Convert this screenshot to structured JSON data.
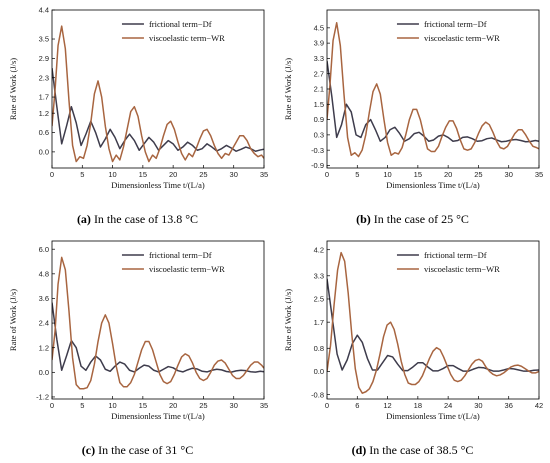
{
  "colors": {
    "frictional": "#3e3c4c",
    "viscoelastic": "#a86540"
  },
  "panels": [
    {
      "caption": {
        "label": "(a)",
        "text": "In the case of 13.8 °C"
      }
    },
    {
      "caption": {
        "label": "(b)",
        "text": "In the case of 25 °C"
      }
    },
    {
      "caption": {
        "label": "(c)",
        "text": "In the case of 31 °C"
      }
    },
    {
      "caption": {
        "label": "(d)",
        "text": "In the case of 38.5 °C"
      }
    }
  ],
  "chart_data": [
    {
      "type": "line",
      "title": "",
      "xlabel": "Dimensionless Time  t/(L/a)",
      "ylabel": "Rate of Work (J/s)",
      "xlim": [
        0,
        35
      ],
      "ylim": [
        -0.5,
        4.4
      ],
      "xticks": [
        0,
        5,
        10,
        15,
        20,
        25,
        30,
        35
      ],
      "yticks": [
        0.0,
        0.6,
        1.2,
        1.7,
        2.3,
        2.9,
        3.5,
        4.4
      ],
      "ytick_labels": [
        "0.0",
        "0.6",
        "1.2",
        "1.7",
        "2.3",
        "2.9",
        "3.5",
        "4.4"
      ],
      "legend": "top-right",
      "series": [
        {
          "name": "frictional term−Df",
          "x": [
            0,
            0.8,
            1.6,
            2.4,
            3.2,
            4.0,
            4.8,
            5.6,
            6.4,
            7.2,
            8.0,
            8.8,
            9.6,
            10.4,
            11.2,
            12.0,
            12.8,
            13.6,
            14.4,
            15.2,
            16.0,
            16.8,
            17.6,
            18.4,
            19.2,
            20.0,
            20.8,
            21.6,
            22.4,
            23.2,
            24.0,
            24.8,
            25.6,
            26.4,
            27.2,
            28.0,
            28.8,
            29.6,
            30.4,
            31.2,
            32.0,
            32.8,
            33.6,
            34.4,
            35.0
          ],
          "y": [
            2.6,
            1.4,
            0.25,
            0.8,
            1.4,
            0.9,
            0.2,
            0.55,
            0.95,
            0.6,
            0.15,
            0.4,
            0.7,
            0.45,
            0.1,
            0.35,
            0.55,
            0.35,
            0.05,
            0.25,
            0.45,
            0.3,
            0.05,
            0.2,
            0.35,
            0.25,
            0.05,
            0.15,
            0.3,
            0.2,
            0.05,
            0.1,
            0.25,
            0.15,
            0.03,
            0.1,
            0.2,
            0.12,
            0.02,
            0.08,
            0.15,
            0.1,
            0.02,
            0.06,
            0.08
          ]
        },
        {
          "name": "viscoelastic term−WR",
          "x": [
            0,
            0.5,
            1.0,
            1.6,
            2.2,
            2.8,
            3.4,
            4.0,
            4.6,
            5.2,
            5.8,
            6.4,
            7.0,
            7.6,
            8.2,
            8.8,
            9.4,
            10.0,
            10.6,
            11.2,
            11.8,
            12.4,
            13.0,
            13.6,
            14.2,
            14.8,
            15.4,
            16.0,
            16.6,
            17.2,
            17.8,
            18.4,
            19.0,
            19.6,
            20.2,
            20.8,
            21.4,
            22.0,
            22.6,
            23.2,
            23.8,
            24.4,
            25.0,
            25.6,
            26.2,
            26.8,
            27.4,
            28.0,
            28.6,
            29.2,
            29.8,
            30.4,
            31.0,
            31.6,
            32.2,
            32.8,
            33.4,
            34.0,
            34.6,
            35.0
          ],
          "y": [
            0.8,
            1.9,
            3.3,
            3.9,
            3.2,
            1.6,
            0.2,
            -0.3,
            -0.15,
            -0.2,
            0.2,
            0.9,
            1.8,
            2.2,
            1.7,
            0.8,
            0.1,
            -0.3,
            -0.1,
            -0.25,
            0.15,
            0.7,
            1.25,
            1.4,
            1.1,
            0.5,
            0.0,
            -0.3,
            -0.1,
            -0.2,
            0.1,
            0.5,
            0.85,
            0.95,
            0.7,
            0.3,
            -0.05,
            -0.25,
            -0.05,
            -0.15,
            0.1,
            0.4,
            0.65,
            0.7,
            0.5,
            0.2,
            -0.05,
            -0.2,
            -0.05,
            -0.1,
            0.1,
            0.3,
            0.5,
            0.5,
            0.35,
            0.1,
            -0.05,
            -0.15,
            -0.1,
            -0.2
          ]
        }
      ]
    },
    {
      "type": "line",
      "title": "",
      "xlabel": "Dimensionless Time  t/(L/a)",
      "ylabel": "Rate of Work (J/s)",
      "xlim": [
        0,
        35
      ],
      "ylim": [
        -1.0,
        5.2
      ],
      "xticks": [
        0,
        5,
        10,
        15,
        20,
        25,
        30,
        35
      ],
      "yticks": [
        -0.9,
        -0.3,
        0.3,
        0.9,
        1.5,
        2.1,
        2.7,
        3.3,
        3.9,
        4.5
      ],
      "ytick_labels": [
        "-0.9",
        "-0.3",
        "0.3",
        "0.9",
        "1.5",
        "2.1",
        "2.7",
        "3.3",
        "3.9",
        "4.5"
      ],
      "legend": "top-right",
      "series": [
        {
          "name": "frictional term−Df",
          "x": [
            0,
            0.8,
            1.6,
            2.4,
            3.2,
            4.0,
            4.8,
            5.6,
            6.4,
            7.2,
            8.0,
            8.8,
            9.6,
            10.4,
            11.2,
            12.0,
            12.8,
            13.6,
            14.4,
            15.2,
            16.0,
            16.8,
            17.6,
            18.4,
            19.2,
            20.0,
            20.8,
            21.6,
            22.4,
            23.2,
            24.0,
            24.8,
            25.6,
            26.4,
            27.2,
            28.0,
            28.8,
            29.6,
            30.4,
            31.2,
            32.0,
            32.8,
            33.6,
            34.4,
            35.0
          ],
          "y": [
            3.2,
            1.8,
            0.2,
            0.7,
            1.5,
            1.2,
            0.3,
            0.2,
            0.7,
            0.9,
            0.5,
            0.05,
            0.2,
            0.5,
            0.6,
            0.35,
            0.05,
            0.15,
            0.35,
            0.4,
            0.25,
            0.05,
            0.1,
            0.25,
            0.3,
            0.2,
            0.05,
            0.08,
            0.2,
            0.22,
            0.15,
            0.05,
            0.07,
            0.15,
            0.18,
            0.1,
            0.03,
            0.05,
            0.1,
            0.12,
            0.08,
            0.03,
            0.04,
            0.08,
            0.05
          ]
        },
        {
          "name": "viscoelastic term−WR",
          "x": [
            0,
            0.5,
            1.0,
            1.6,
            2.2,
            2.8,
            3.4,
            4.0,
            4.6,
            5.2,
            5.8,
            6.4,
            7.0,
            7.6,
            8.2,
            8.8,
            9.4,
            10.0,
            10.6,
            11.2,
            11.8,
            12.4,
            13.0,
            13.6,
            14.2,
            14.8,
            15.4,
            16.0,
            16.6,
            17.2,
            17.8,
            18.4,
            19.0,
            19.6,
            20.2,
            20.8,
            21.4,
            22.0,
            22.6,
            23.2,
            23.8,
            24.4,
            25.0,
            25.6,
            26.2,
            26.8,
            27.4,
            28.0,
            28.6,
            29.2,
            29.8,
            30.4,
            31.0,
            31.6,
            32.2,
            32.8,
            33.4,
            34.0,
            34.6,
            35.0
          ],
          "y": [
            0.9,
            2.3,
            4.0,
            4.7,
            3.8,
            1.9,
            0.2,
            -0.5,
            -0.4,
            -0.55,
            -0.3,
            0.3,
            1.2,
            2.0,
            2.3,
            1.9,
            0.9,
            0.0,
            -0.5,
            -0.4,
            -0.45,
            -0.2,
            0.3,
            0.9,
            1.3,
            1.3,
            0.9,
            0.3,
            -0.25,
            -0.35,
            -0.35,
            -0.15,
            0.25,
            0.6,
            0.85,
            0.85,
            0.55,
            0.1,
            -0.25,
            -0.3,
            -0.25,
            0.0,
            0.35,
            0.65,
            0.8,
            0.7,
            0.4,
            0.05,
            -0.2,
            -0.25,
            -0.15,
            0.1,
            0.35,
            0.5,
            0.5,
            0.3,
            0.05,
            -0.15,
            -0.2,
            -0.25
          ]
        }
      ]
    },
    {
      "type": "line",
      "title": "",
      "xlabel": "Dimensionless Time  t/(L/a)",
      "ylabel": "Rate of Work (J/s)",
      "xlim": [
        0,
        35
      ],
      "ylim": [
        -1.3,
        6.4
      ],
      "xticks": [
        0,
        5,
        10,
        15,
        20,
        25,
        30,
        35
      ],
      "yticks": [
        -1.2,
        0.0,
        1.2,
        2.4,
        3.6,
        4.8,
        6.0
      ],
      "ytick_labels": [
        "-1.2",
        "0.0",
        "1.2",
        "2.4",
        "3.6",
        "4.8",
        "6.0"
      ],
      "legend": "top-right",
      "series": [
        {
          "name": "frictional term−Df",
          "x": [
            0,
            0.8,
            1.6,
            2.4,
            3.2,
            4.0,
            4.8,
            5.6,
            6.4,
            7.2,
            8.0,
            8.8,
            9.6,
            10.4,
            11.2,
            12.0,
            12.8,
            13.6,
            14.4,
            15.2,
            16.0,
            16.8,
            17.6,
            18.4,
            19.2,
            20.0,
            20.8,
            21.6,
            22.4,
            23.2,
            24.0,
            24.8,
            25.6,
            26.4,
            27.2,
            28.0,
            28.8,
            29.6,
            30.4,
            31.2,
            32.0,
            32.8,
            33.6,
            34.4,
            35.0
          ],
          "y": [
            3.4,
            1.6,
            0.1,
            0.8,
            1.55,
            1.2,
            0.3,
            0.1,
            0.5,
            0.8,
            0.6,
            0.15,
            0.05,
            0.3,
            0.5,
            0.4,
            0.1,
            0.02,
            0.2,
            0.35,
            0.3,
            0.1,
            0.02,
            0.15,
            0.28,
            0.22,
            0.08,
            0.02,
            0.12,
            0.2,
            0.16,
            0.05,
            0.02,
            0.1,
            0.15,
            0.12,
            0.04,
            0.01,
            0.07,
            0.1,
            0.08,
            0.03,
            0.01,
            0.05,
            0.03
          ]
        },
        {
          "name": "viscoelastic term−WR",
          "x": [
            0,
            0.5,
            1.0,
            1.6,
            2.2,
            2.8,
            3.4,
            4.0,
            4.6,
            5.2,
            5.8,
            6.4,
            7.0,
            7.6,
            8.2,
            8.8,
            9.4,
            10.0,
            10.6,
            11.2,
            11.8,
            12.4,
            13.0,
            13.6,
            14.2,
            14.8,
            15.4,
            16.0,
            16.6,
            17.2,
            17.8,
            18.4,
            19.0,
            19.6,
            20.2,
            20.8,
            21.4,
            22.0,
            22.6,
            23.2,
            23.8,
            24.4,
            25.0,
            25.6,
            26.2,
            26.8,
            27.4,
            28.0,
            28.6,
            29.2,
            29.8,
            30.4,
            31.0,
            31.6,
            32.2,
            32.8,
            33.4,
            34.0,
            34.6,
            35.0
          ],
          "y": [
            0.6,
            2.0,
            4.3,
            5.6,
            5.0,
            3.0,
            0.7,
            -0.6,
            -0.8,
            -0.8,
            -0.75,
            -0.4,
            0.4,
            1.5,
            2.4,
            2.8,
            2.4,
            1.4,
            0.3,
            -0.5,
            -0.7,
            -0.7,
            -0.5,
            -0.1,
            0.5,
            1.1,
            1.5,
            1.5,
            1.1,
            0.5,
            -0.1,
            -0.45,
            -0.55,
            -0.45,
            -0.1,
            0.35,
            0.75,
            0.9,
            0.8,
            0.45,
            0.0,
            -0.3,
            -0.4,
            -0.3,
            0.0,
            0.35,
            0.55,
            0.6,
            0.45,
            0.15,
            -0.15,
            -0.3,
            -0.3,
            -0.15,
            0.1,
            0.35,
            0.5,
            0.5,
            0.35,
            0.2
          ]
        }
      ]
    },
    {
      "type": "line",
      "title": "",
      "xlabel": "Dimensionless Time  t/(L/a)",
      "ylabel": "Rate of Work (J/s)",
      "xlim": [
        0,
        42
      ],
      "ylim": [
        -0.95,
        4.5
      ],
      "xticks": [
        0,
        6,
        12,
        18,
        24,
        30,
        36,
        42
      ],
      "yticks": [
        -0.8,
        0.0,
        0.8,
        1.7,
        2.5,
        3.3,
        4.2
      ],
      "ytick_labels": [
        "-0.8",
        "0.0",
        "0.8",
        "1.7",
        "2.5",
        "3.3",
        "4.2"
      ],
      "legend": "top-right",
      "series": [
        {
          "name": "frictional term−Df",
          "x": [
            0,
            1.0,
            2.0,
            3.0,
            4.0,
            5.0,
            6.0,
            7.0,
            8.0,
            9.0,
            10.0,
            11.0,
            12.0,
            13.0,
            14.0,
            15.0,
            16.0,
            17.0,
            18.0,
            19.0,
            20.0,
            21.0,
            22.0,
            23.0,
            24.0,
            25.0,
            26.0,
            27.0,
            28.0,
            29.0,
            30.0,
            31.0,
            32.0,
            33.0,
            34.0,
            35.0,
            36.0,
            37.0,
            38.0,
            39.0,
            40.0,
            41.0,
            42.0
          ],
          "y": [
            3.2,
            1.9,
            0.6,
            0.05,
            0.4,
            0.95,
            1.25,
            1.0,
            0.45,
            0.05,
            0.05,
            0.3,
            0.55,
            0.5,
            0.25,
            0.03,
            0.03,
            0.15,
            0.3,
            0.3,
            0.15,
            0.02,
            0.02,
            0.1,
            0.2,
            0.2,
            0.1,
            0.01,
            0.01,
            0.08,
            0.14,
            0.13,
            0.07,
            0.01,
            0.01,
            0.05,
            0.1,
            0.09,
            0.05,
            0.01,
            0.01,
            0.04,
            0.05
          ]
        },
        {
          "name": "viscoelastic term−WR",
          "x": [
            0,
            0.7,
            1.4,
            2.1,
            2.8,
            3.5,
            4.2,
            4.9,
            5.6,
            6.3,
            7.0,
            7.7,
            8.4,
            9.1,
            9.8,
            10.5,
            11.2,
            11.9,
            12.6,
            13.3,
            14.0,
            14.7,
            15.4,
            16.1,
            16.8,
            17.5,
            18.2,
            18.9,
            19.6,
            20.3,
            21.0,
            21.7,
            22.4,
            23.1,
            23.8,
            24.5,
            25.2,
            25.9,
            26.6,
            27.3,
            28.0,
            28.7,
            29.4,
            30.1,
            30.8,
            31.5,
            32.2,
            32.9,
            33.6,
            34.3,
            35.0,
            35.7,
            36.4,
            37.1,
            37.8,
            38.5,
            39.2,
            39.9,
            40.6,
            41.3,
            42.0
          ],
          "y": [
            0.0,
            0.9,
            2.3,
            3.5,
            4.1,
            3.8,
            2.7,
            1.3,
            0.1,
            -0.55,
            -0.75,
            -0.7,
            -0.6,
            -0.35,
            0.05,
            0.6,
            1.2,
            1.6,
            1.7,
            1.45,
            0.95,
            0.35,
            -0.1,
            -0.4,
            -0.45,
            -0.45,
            -0.35,
            -0.15,
            0.15,
            0.45,
            0.7,
            0.82,
            0.75,
            0.5,
            0.2,
            -0.1,
            -0.3,
            -0.35,
            -0.3,
            -0.15,
            0.05,
            0.25,
            0.38,
            0.42,
            0.35,
            0.15,
            0.0,
            -0.1,
            -0.15,
            -0.12,
            -0.05,
            0.05,
            0.15,
            0.2,
            0.22,
            0.18,
            0.1,
            0.02,
            -0.05,
            -0.05,
            0.0
          ]
        }
      ]
    }
  ]
}
